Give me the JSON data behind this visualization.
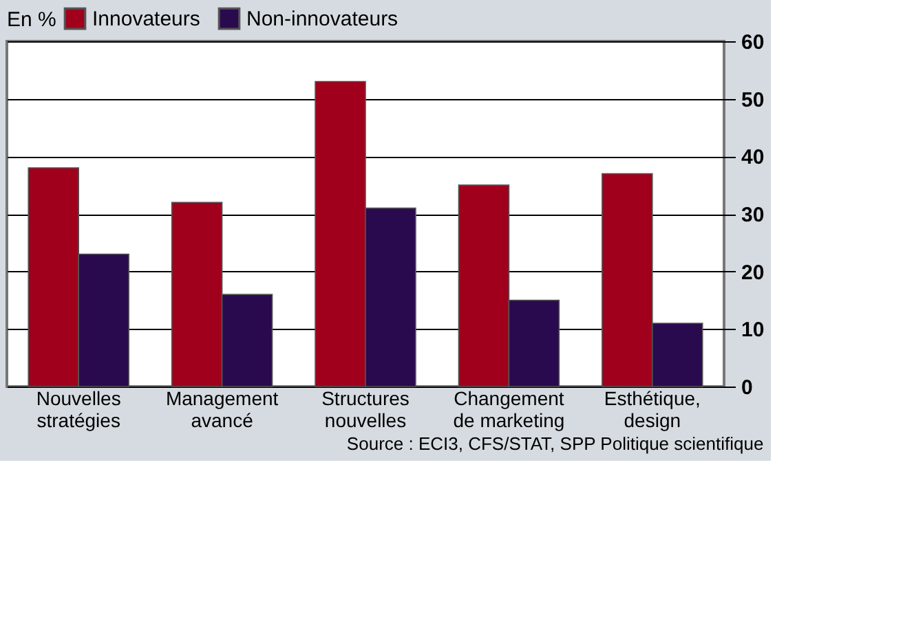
{
  "chart_data": {
    "type": "bar",
    "legend_title": "En %",
    "legend": "top left",
    "grid": "y",
    "categories": [
      "Nouvelles stratégies",
      "Management avancé",
      "Structures nouvelles",
      "Changement de marketing",
      "Esthétique, design"
    ],
    "series": [
      {
        "name": "Innovateurs",
        "color": "#a0001c",
        "values": [
          38,
          32,
          53,
          35,
          37
        ]
      },
      {
        "name": "Non-innovateurs",
        "color": "#2a0a4e",
        "values": [
          23,
          16,
          31,
          15,
          11
        ]
      }
    ],
    "ylim": [
      0,
      60
    ],
    "yticks": [
      0,
      10,
      20,
      30,
      40,
      50,
      60
    ],
    "annotations": [
      "Source : ECI3, CFS/STAT, SPP Politique scientifique"
    ]
  }
}
